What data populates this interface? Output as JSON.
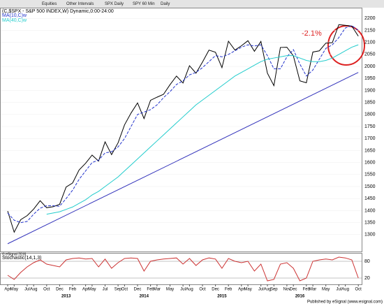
{
  "toolbar": {
    "items": [
      "Equities",
      "Other Intervals",
      "SPX Daily",
      "SPY 60 Min",
      "Daily"
    ]
  },
  "footer": "Published by eSignal (www.esignal.com)",
  "chart_data": [
    {
      "type": "line",
      "title": "(C,$SPX - S&P 500 INDEX,W) Dynamic,0:00-24:00",
      "copyright": "© eSignal 2016",
      "annotation": "-2.1%",
      "x": [
        "2012-04",
        "2012-05",
        "2012-06",
        "2012-07",
        "2012-08",
        "2012-09",
        "2012-10",
        "2012-11",
        "2012-12",
        "2013-01",
        "2013-02",
        "2013-03",
        "2013-04",
        "2013-05",
        "2013-06",
        "2013-07",
        "2013-08",
        "2013-09",
        "2013-10",
        "2013-11",
        "2013-12",
        "2014-01",
        "2014-02",
        "2014-03",
        "2014-04",
        "2014-05",
        "2014-06",
        "2014-07",
        "2014-08",
        "2014-09",
        "2014-10",
        "2014-11",
        "2014-12",
        "2015-01",
        "2015-02",
        "2015-03",
        "2015-04",
        "2015-05",
        "2015-06",
        "2015-07",
        "2015-08",
        "2015-09",
        "2015-10",
        "2015-11",
        "2015-12",
        "2016-01",
        "2016-02",
        "2016-03",
        "2016-04",
        "2016-05",
        "2016-06",
        "2016-07",
        "2016-08",
        "2016-09",
        "2016-10"
      ],
      "series": [
        {
          "color": "#000000",
          "values": [
            1398,
            1310,
            1362,
            1379,
            1406,
            1441,
            1412,
            1416,
            1426,
            1498,
            1515,
            1569,
            1597,
            1631,
            1606,
            1686,
            1633,
            1682,
            1757,
            1806,
            1848,
            1783,
            1859,
            1872,
            1884,
            1924,
            1960,
            1931,
            2003,
            1972,
            2018,
            2068,
            2059,
            1995,
            2105,
            2068,
            2086,
            2107,
            2063,
            2104,
            1972,
            1920,
            2079,
            2080,
            2044,
            1940,
            1932,
            2060,
            2065,
            2097,
            2099,
            2174,
            2171,
            2168,
            2126
          ]
        },
        {
          "name": "MA(10,C)w",
          "color": "#2233cc",
          "dashed": true,
          "values": [
            1390,
            1360,
            1350,
            1355,
            1385,
            1410,
            1420,
            1420,
            1418,
            1450,
            1485,
            1530,
            1565,
            1600,
            1610,
            1640,
            1645,
            1665,
            1700,
            1750,
            1800,
            1810,
            1820,
            1840,
            1870,
            1895,
            1925,
            1940,
            1965,
            1975,
            1995,
            2020,
            2045,
            2040,
            2050,
            2065,
            2080,
            2090,
            2085,
            2090,
            2045,
            1990,
            1990,
            2040,
            2070,
            2010,
            1960,
            1985,
            2030,
            2075,
            2090,
            2120,
            2160,
            2170,
            2150
          ]
        },
        {
          "name": "MA(40,C)w",
          "color": "#22cccc",
          "values": [
            null,
            null,
            null,
            null,
            null,
            null,
            1385,
            1390,
            1395,
            1405,
            1415,
            1430,
            1445,
            1465,
            1480,
            1500,
            1520,
            1540,
            1565,
            1590,
            1615,
            1640,
            1665,
            1690,
            1715,
            1740,
            1765,
            1790,
            1815,
            1840,
            1860,
            1880,
            1900,
            1920,
            1940,
            1960,
            1975,
            1990,
            2005,
            2020,
            2030,
            2035,
            2040,
            2045,
            2045,
            2035,
            2025,
            2020,
            2020,
            2025,
            2035,
            2050,
            2065,
            2080,
            2090
          ]
        }
      ],
      "trendline": {
        "x": [
          "2012-04",
          "2016-10"
        ],
        "values": [
          1262,
          1975
        ],
        "color": "#3333bb"
      },
      "ylim": [
        1250,
        2230
      ],
      "yticks": [
        1300,
        1350,
        1400,
        1450,
        1500,
        1550,
        1600,
        1650,
        1700,
        1750,
        1800,
        1850,
        1900,
        1950,
        2000,
        2050,
        2100,
        2150,
        2200
      ],
      "xticks": [
        {
          "value": "2012-04",
          "label": "Apr"
        },
        {
          "value": "2012-05",
          "label": "May"
        },
        {
          "value": "2012-07",
          "label": "Jul"
        },
        {
          "value": "2012-08",
          "label": "Aug"
        },
        {
          "value": "2012-10",
          "label": "Oct"
        },
        {
          "value": "2012-12",
          "label": "Dec"
        },
        {
          "value": "2013-02",
          "label": "Feb"
        },
        {
          "value": "2013-04",
          "label": "Apr"
        },
        {
          "value": "2013-05",
          "label": "May"
        },
        {
          "value": "2013-07",
          "label": "Jul"
        },
        {
          "value": "2013-09",
          "label": "Sep"
        },
        {
          "value": "2013-10",
          "label": "Oct"
        },
        {
          "value": "2013-12",
          "label": "Dec"
        },
        {
          "value": "2014-02",
          "label": "Feb"
        },
        {
          "value": "2014-03",
          "label": "Mar"
        },
        {
          "value": "2014-05",
          "label": "May"
        },
        {
          "value": "2014-07",
          "label": "Jul"
        },
        {
          "value": "2014-08",
          "label": "Aug"
        },
        {
          "value": "2014-10",
          "label": "Oct"
        },
        {
          "value": "2014-12",
          "label": "Dec"
        },
        {
          "value": "2015-02",
          "label": "Feb"
        },
        {
          "value": "2015-04",
          "label": "Apr"
        },
        {
          "value": "2015-05",
          "label": "May"
        },
        {
          "value": "2015-07",
          "label": "Jul"
        },
        {
          "value": "2015-08",
          "label": "Aug"
        },
        {
          "value": "2015-09",
          "label": "Sep"
        },
        {
          "value": "2015-11",
          "label": "Nov"
        },
        {
          "value": "2015-12",
          "label": "Dec"
        },
        {
          "value": "2016-02",
          "label": "Feb"
        },
        {
          "value": "2016-03",
          "label": "Mar"
        },
        {
          "value": "2016-05",
          "label": "May"
        },
        {
          "value": "2016-07",
          "label": "Jul"
        },
        {
          "value": "2016-08",
          "label": "Aug"
        },
        {
          "value": "2016-10",
          "label": "Oct"
        }
      ],
      "year_ticks": [
        {
          "value": "2013-01",
          "label": "2013"
        },
        {
          "value": "2014-01",
          "label": "2014"
        },
        {
          "value": "2015-01",
          "label": "2015"
        },
        {
          "value": "2016-01",
          "label": "2016"
        }
      ]
    },
    {
      "type": "line",
      "title": "Stochastic(14,1,3)",
      "series": [
        {
          "color": "#cc3333",
          "values": [
            30,
            15,
            40,
            60,
            75,
            85,
            70,
            65,
            60,
            85,
            90,
            92,
            88,
            90,
            60,
            88,
            55,
            75,
            90,
            92,
            90,
            45,
            80,
            85,
            88,
            90,
            92,
            70,
            90,
            65,
            85,
            92,
            88,
            55,
            90,
            80,
            75,
            80,
            45,
            70,
            10,
            15,
            70,
            75,
            55,
            10,
            20,
            80,
            85,
            88,
            85,
            95,
            92,
            85,
            20
          ]
        }
      ],
      "ylim": [
        0,
        100
      ],
      "yticks": [
        20,
        80
      ]
    }
  ]
}
